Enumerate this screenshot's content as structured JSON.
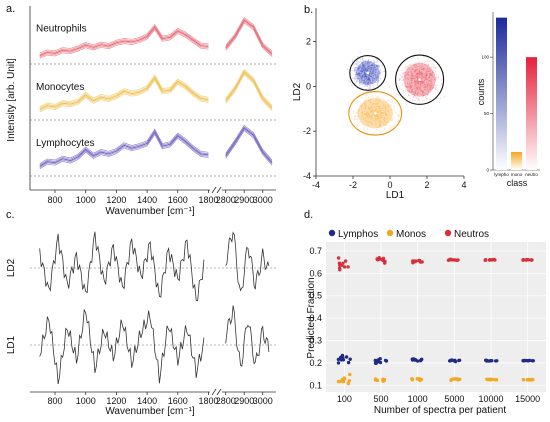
{
  "panels": {
    "a": {
      "label": "a.",
      "ylabel": "Intensity [arb. Unit]",
      "xlabel": "Wavenumber [cm⁻¹]",
      "xticks": [
        "800",
        "1000",
        "1200",
        "1400",
        "1600",
        "1800",
        "2800",
        "2900",
        "3000"
      ],
      "traces": [
        {
          "name": "Neutrophils",
          "color": "#e8707c"
        },
        {
          "name": "Monocytes",
          "color": "#f0c45a"
        },
        {
          "name": "Lymphocytes",
          "color": "#7d6cc4"
        }
      ]
    },
    "b": {
      "label": "b.",
      "xlabel": "LD1",
      "ylabel": "LD2",
      "xticks": [
        "-4",
        "-2",
        "0",
        "2",
        "4"
      ],
      "yticks": [
        "-4",
        "-2",
        "0",
        "2"
      ],
      "bar_ylabel": "counts",
      "bar_xlabel": "class",
      "bar_yticks": [
        "0",
        "50",
        "100"
      ],
      "bar_categories": [
        "lympho",
        "mono",
        "neutro"
      ]
    },
    "c": {
      "label": "c.",
      "xlabel": "Wavenumber [cm⁻¹]",
      "xticks": [
        "800",
        "1000",
        "1200",
        "1400",
        "1600",
        "1800",
        "2800",
        "2900",
        "3000"
      ],
      "ylabels": [
        "LD2",
        "LD1"
      ]
    },
    "d": {
      "label": "d.",
      "ylabel": "Predicted Fraction",
      "xlabel": "Number of spectra per patient",
      "legend": [
        {
          "name": "Lymphos",
          "color": "#1f2a86"
        },
        {
          "name": "Monos",
          "color": "#f5a623"
        },
        {
          "name": "Neutros",
          "color": "#d6313b"
        }
      ],
      "yticks": [
        "0.1",
        "0.2",
        "0.3",
        "0.4",
        "0.5",
        "0.6",
        "0.7"
      ]
    }
  },
  "chart_data": [
    {
      "type": "line",
      "title": "",
      "xlabel": "Wavenumber [cm⁻¹]",
      "ylabel": "Intensity [arb. Unit]",
      "xlim": [
        650,
        3050
      ],
      "x_break": [
        1810,
        2780
      ],
      "series": [
        {
          "name": "Neutrophils",
          "x": [
            700,
            750,
            800,
            850,
            900,
            950,
            1000,
            1050,
            1100,
            1150,
            1200,
            1250,
            1300,
            1350,
            1400,
            1450,
            1500,
            1550,
            1600,
            1650,
            1700,
            1750,
            1800,
            2800,
            2850,
            2900,
            2950,
            3000,
            3050
          ],
          "values": [
            0.18,
            0.25,
            0.23,
            0.3,
            0.28,
            0.34,
            0.41,
            0.36,
            0.42,
            0.39,
            0.46,
            0.5,
            0.48,
            0.52,
            0.6,
            0.8,
            0.55,
            0.58,
            0.72,
            0.64,
            0.52,
            0.4,
            0.38,
            0.35,
            0.6,
            0.95,
            0.8,
            0.4,
            0.22
          ]
        },
        {
          "name": "Monocytes",
          "x": [
            700,
            750,
            800,
            850,
            900,
            950,
            1000,
            1050,
            1100,
            1150,
            1200,
            1250,
            1300,
            1350,
            1400,
            1450,
            1500,
            1550,
            1600,
            1650,
            1700,
            1750,
            1800,
            2800,
            2850,
            2900,
            2950,
            3000,
            3050
          ],
          "values": [
            0.22,
            0.3,
            0.27,
            0.35,
            0.33,
            0.38,
            0.52,
            0.4,
            0.48,
            0.44,
            0.5,
            0.6,
            0.55,
            0.58,
            0.66,
            0.88,
            0.6,
            0.62,
            0.8,
            0.7,
            0.56,
            0.45,
            0.42,
            0.4,
            0.65,
            1.0,
            0.82,
            0.45,
            0.25
          ]
        },
        {
          "name": "Lymphocytes",
          "x": [
            700,
            750,
            800,
            850,
            900,
            950,
            1000,
            1050,
            1100,
            1150,
            1200,
            1250,
            1300,
            1350,
            1400,
            1450,
            1500,
            1550,
            1600,
            1650,
            1700,
            1750,
            1800,
            2800,
            2850,
            2900,
            2950,
            3000,
            3050
          ],
          "values": [
            0.2,
            0.3,
            0.28,
            0.36,
            0.32,
            0.4,
            0.55,
            0.42,
            0.5,
            0.46,
            0.52,
            0.64,
            0.58,
            0.62,
            0.68,
            0.92,
            0.62,
            0.66,
            0.84,
            0.72,
            0.58,
            0.46,
            0.44,
            0.42,
            0.7,
            1.0,
            0.85,
            0.5,
            0.28
          ]
        }
      ]
    },
    {
      "type": "scatter",
      "xlabel": "LD1",
      "ylabel": "LD2",
      "xlim": [
        -4,
        4
      ],
      "ylim": [
        -4,
        3.5
      ],
      "series": [
        {
          "name": "lympho",
          "center": [
            -1.2,
            0.6
          ],
          "color": "#2b3ab8"
        },
        {
          "name": "mono",
          "center": [
            -0.8,
            -1.2
          ],
          "color": "#f5a623"
        },
        {
          "name": "neutro",
          "center": [
            1.6,
            0.3
          ],
          "color": "#e33240"
        }
      ]
    },
    {
      "type": "bar",
      "xlabel": "class",
      "ylabel": "counts",
      "categories": [
        "lympho",
        "mono",
        "neutro"
      ],
      "values": [
        135,
        16,
        100
      ],
      "ylim": [
        0,
        140
      ]
    },
    {
      "type": "line",
      "xlabel": "Wavenumber [cm⁻¹]",
      "xlim": [
        650,
        3050
      ],
      "series": [
        {
          "name": "LD2",
          "x": [
            700,
            760,
            820,
            880,
            940,
            1000,
            1060,
            1120,
            1180,
            1240,
            1300,
            1360,
            1420,
            1480,
            1540,
            1600,
            1660,
            1720,
            1780,
            2800,
            2840,
            2880,
            2920,
            2960,
            3000,
            3040
          ],
          "values": [
            0.5,
            -0.8,
            1.0,
            -0.6,
            0.4,
            -0.9,
            1.1,
            -0.5,
            0.7,
            -0.7,
            0.9,
            -0.3,
            0.8,
            -1.0,
            0.6,
            -0.4,
            0.9,
            -1.1,
            0.3,
            0.2,
            1.3,
            -1.0,
            0.8,
            -0.6,
            0.4,
            -0.2
          ]
        },
        {
          "name": "LD1",
          "x": [
            700,
            760,
            820,
            880,
            940,
            1000,
            1060,
            1120,
            1180,
            1240,
            1300,
            1360,
            1420,
            1480,
            1540,
            1600,
            1660,
            1720,
            1780,
            2800,
            2840,
            2880,
            2920,
            2960,
            3000,
            3040
          ],
          "values": [
            -0.3,
            0.9,
            -1.2,
            0.6,
            -0.5,
            1.2,
            -0.8,
            0.5,
            -0.4,
            0.8,
            -0.6,
            0.4,
            1.0,
            -1.1,
            0.7,
            -0.5,
            0.6,
            -0.9,
            0.2,
            0.3,
            1.2,
            -0.8,
            0.9,
            -0.7,
            0.5,
            -0.3
          ]
        }
      ]
    },
    {
      "type": "scatter",
      "xlabel": "Number of spectra per patient",
      "ylabel": "Predicted Fraction",
      "categories": [
        "100",
        "500",
        "1000",
        "5000",
        "10000",
        "15000"
      ],
      "ylim": [
        0.07,
        0.74
      ],
      "series": [
        {
          "name": "Lymphos",
          "center": [
            0.22,
            0.21,
            0.215,
            0.21,
            0.21,
            0.21
          ],
          "spread": [
            0.04,
            0.025,
            0.012,
            0.006,
            0.003,
            0.002
          ]
        },
        {
          "name": "Monos",
          "center": [
            0.13,
            0.125,
            0.125,
            0.125,
            0.125,
            0.125
          ],
          "spread": [
            0.035,
            0.02,
            0.012,
            0.006,
            0.003,
            0.002
          ]
        },
        {
          "name": "Neutros",
          "center": [
            0.64,
            0.66,
            0.655,
            0.66,
            0.66,
            0.66
          ],
          "spread": [
            0.05,
            0.02,
            0.014,
            0.006,
            0.003,
            0.002
          ]
        }
      ]
    }
  ]
}
